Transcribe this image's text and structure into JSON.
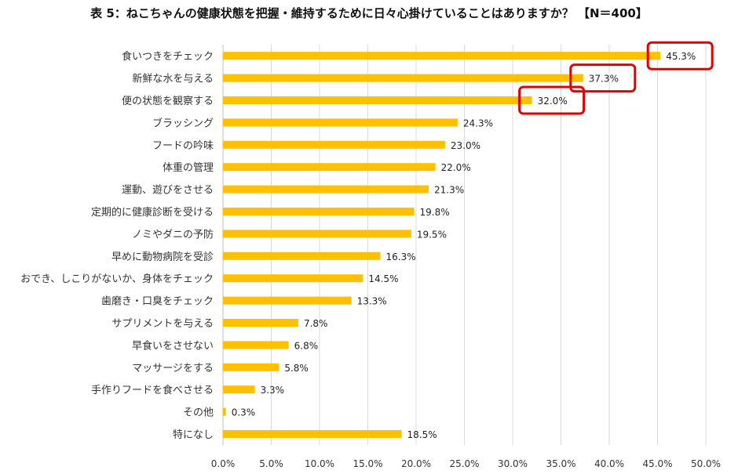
{
  "chart_data": {
    "type": "bar",
    "orientation": "horizontal",
    "title": "表 5：ねこちゃんの健康状態を把握・維持するために日々心掛けていることはありますか？ 【N＝400】",
    "categories": [
      "食いつきをチェック",
      "新鮮な水を与える",
      "便の状態を観察する",
      "ブラッシング",
      "フードの吟味",
      "体重の管理",
      "運動、遊びをさせる",
      "定期的に健康診断を受ける",
      "ノミやダニの予防",
      "早めに動物病院を受診",
      "おでき、しこりがないか、身体をチェック",
      "歯磨き・口臭をチェック",
      "サプリメントを与える",
      "早食いをさせない",
      "マッサージをする",
      "手作りフードを食べさせる",
      "その他",
      "特になし"
    ],
    "values": [
      45.3,
      37.3,
      32.0,
      24.3,
      23.0,
      22.0,
      21.3,
      19.8,
      19.5,
      16.3,
      14.5,
      13.3,
      7.8,
      6.8,
      5.8,
      3.3,
      0.3,
      18.5
    ],
    "value_labels": [
      "45.3%",
      "37.3%",
      "32.0%",
      "24.3%",
      "23.0%",
      "22.0%",
      "21.3%",
      "19.8%",
      "19.5%",
      "16.3%",
      "14.5%",
      "13.3%",
      "7.8%",
      "6.8%",
      "5.8%",
      "3.3%",
      "0.3%",
      "18.5%"
    ],
    "xlim": [
      0,
      50
    ],
    "x_ticks": [
      "0.0%",
      "5.0%",
      "10.0%",
      "15.0%",
      "20.0%",
      "25.0%",
      "30.0%",
      "35.0%",
      "40.0%",
      "45.0%",
      "50.0%"
    ],
    "grid": true,
    "bar_color": "#FFC000",
    "grid_color": "#D9D9D9",
    "highlight_color": "#E00000",
    "highlighted_indices": [
      0,
      1,
      2
    ]
  }
}
